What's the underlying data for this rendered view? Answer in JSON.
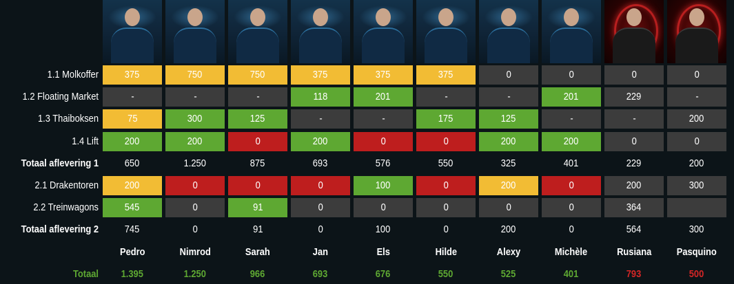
{
  "contestants": [
    {
      "name": "Pedro",
      "photo_style": "blue"
    },
    {
      "name": "Nimrod",
      "photo_style": "blue"
    },
    {
      "name": "Sarah",
      "photo_style": "blue"
    },
    {
      "name": "Jan",
      "photo_style": "blue"
    },
    {
      "name": "Els",
      "photo_style": "blue"
    },
    {
      "name": "Hilde",
      "photo_style": "blue"
    },
    {
      "name": "Alexy",
      "photo_style": "blue"
    },
    {
      "name": "Michèle",
      "photo_style": "blue"
    },
    {
      "name": "Rusiana",
      "photo_style": "red"
    },
    {
      "name": "Pasquino",
      "photo_style": "red"
    }
  ],
  "colors": {
    "yellow": "#f2bc34",
    "green": "#5ea832",
    "red": "#be1e1e",
    "grey": "#3c3c3c",
    "background": "#0c1418",
    "total_green": "#5ea832",
    "total_red": "#d42626"
  },
  "rows": [
    {
      "label": "1.1 Molkoffer",
      "bold": false,
      "cells": [
        {
          "v": "375",
          "c": "yellow"
        },
        {
          "v": "750",
          "c": "yellow"
        },
        {
          "v": "750",
          "c": "yellow"
        },
        {
          "v": "375",
          "c": "yellow"
        },
        {
          "v": "375",
          "c": "yellow"
        },
        {
          "v": "375",
          "c": "yellow"
        },
        {
          "v": "0",
          "c": "grey"
        },
        {
          "v": "0",
          "c": "grey"
        },
        {
          "v": "0",
          "c": "grey"
        },
        {
          "v": "0",
          "c": "grey"
        }
      ]
    },
    {
      "label": "1.2 Floating Market",
      "bold": false,
      "cells": [
        {
          "v": "-",
          "c": "grey"
        },
        {
          "v": "-",
          "c": "grey"
        },
        {
          "v": "-",
          "c": "grey"
        },
        {
          "v": "118",
          "c": "green"
        },
        {
          "v": "201",
          "c": "green"
        },
        {
          "v": "-",
          "c": "grey"
        },
        {
          "v": "-",
          "c": "grey"
        },
        {
          "v": "201",
          "c": "green"
        },
        {
          "v": "229",
          "c": "grey"
        },
        {
          "v": "-",
          "c": "grey"
        }
      ]
    },
    {
      "label": "1.3 Thaiboksen",
      "bold": false,
      "cells": [
        {
          "v": "75",
          "c": "yellow"
        },
        {
          "v": "300",
          "c": "green"
        },
        {
          "v": "125",
          "c": "green"
        },
        {
          "v": "-",
          "c": "grey"
        },
        {
          "v": "-",
          "c": "grey"
        },
        {
          "v": "175",
          "c": "green"
        },
        {
          "v": "125",
          "c": "green"
        },
        {
          "v": "-",
          "c": "grey"
        },
        {
          "v": "-",
          "c": "grey"
        },
        {
          "v": "200",
          "c": "grey"
        }
      ]
    },
    {
      "label": "1.4 Lift",
      "bold": false,
      "cells": [
        {
          "v": "200",
          "c": "green"
        },
        {
          "v": "200",
          "c": "green"
        },
        {
          "v": "0",
          "c": "red"
        },
        {
          "v": "200",
          "c": "green"
        },
        {
          "v": "0",
          "c": "red"
        },
        {
          "v": "0",
          "c": "red"
        },
        {
          "v": "200",
          "c": "green"
        },
        {
          "v": "200",
          "c": "green"
        },
        {
          "v": "0",
          "c": "grey"
        },
        {
          "v": "0",
          "c": "grey"
        }
      ]
    },
    {
      "label": "Totaal aflevering 1",
      "bold": true,
      "cells": [
        {
          "v": "650",
          "c": "plain"
        },
        {
          "v": "1.250",
          "c": "plain"
        },
        {
          "v": "875",
          "c": "plain"
        },
        {
          "v": "693",
          "c": "plain"
        },
        {
          "v": "576",
          "c": "plain"
        },
        {
          "v": "550",
          "c": "plain"
        },
        {
          "v": "325",
          "c": "plain"
        },
        {
          "v": "401",
          "c": "plain"
        },
        {
          "v": "229",
          "c": "plain"
        },
        {
          "v": "200",
          "c": "plain"
        }
      ]
    },
    {
      "label": "2.1 Drakentoren",
      "bold": false,
      "cells": [
        {
          "v": "200",
          "c": "yellow"
        },
        {
          "v": "0",
          "c": "red"
        },
        {
          "v": "0",
          "c": "red"
        },
        {
          "v": "0",
          "c": "red"
        },
        {
          "v": "100",
          "c": "green"
        },
        {
          "v": "0",
          "c": "red"
        },
        {
          "v": "200",
          "c": "yellow"
        },
        {
          "v": "0",
          "c": "red"
        },
        {
          "v": "200",
          "c": "grey"
        },
        {
          "v": "300",
          "c": "grey"
        }
      ]
    },
    {
      "label": "2.2 Treinwagons",
      "bold": false,
      "cells": [
        {
          "v": "545",
          "c": "green"
        },
        {
          "v": "0",
          "c": "grey"
        },
        {
          "v": "91",
          "c": "green"
        },
        {
          "v": "0",
          "c": "grey"
        },
        {
          "v": "0",
          "c": "grey"
        },
        {
          "v": "0",
          "c": "grey"
        },
        {
          "v": "0",
          "c": "grey"
        },
        {
          "v": "0",
          "c": "grey"
        },
        {
          "v": "364",
          "c": "grey"
        },
        {
          "v": "",
          "c": "grey"
        }
      ]
    },
    {
      "label": "Totaal aflevering 2",
      "bold": true,
      "cells": [
        {
          "v": "745",
          "c": "plain"
        },
        {
          "v": "0",
          "c": "plain"
        },
        {
          "v": "91",
          "c": "plain"
        },
        {
          "v": "0",
          "c": "plain"
        },
        {
          "v": "100",
          "c": "plain"
        },
        {
          "v": "0",
          "c": "plain"
        },
        {
          "v": "200",
          "c": "plain"
        },
        {
          "v": "0",
          "c": "plain"
        },
        {
          "v": "564",
          "c": "plain"
        },
        {
          "v": "300",
          "c": "plain"
        }
      ]
    }
  ],
  "totals": {
    "label": "Totaal",
    "values": [
      {
        "v": "1.395",
        "c": "total_green"
      },
      {
        "v": "1.250",
        "c": "total_green"
      },
      {
        "v": "966",
        "c": "total_green"
      },
      {
        "v": "693",
        "c": "total_green"
      },
      {
        "v": "676",
        "c": "total_green"
      },
      {
        "v": "550",
        "c": "total_green"
      },
      {
        "v": "525",
        "c": "total_green"
      },
      {
        "v": "401",
        "c": "total_green"
      },
      {
        "v": "793",
        "c": "total_red"
      },
      {
        "v": "500",
        "c": "total_red"
      }
    ]
  }
}
